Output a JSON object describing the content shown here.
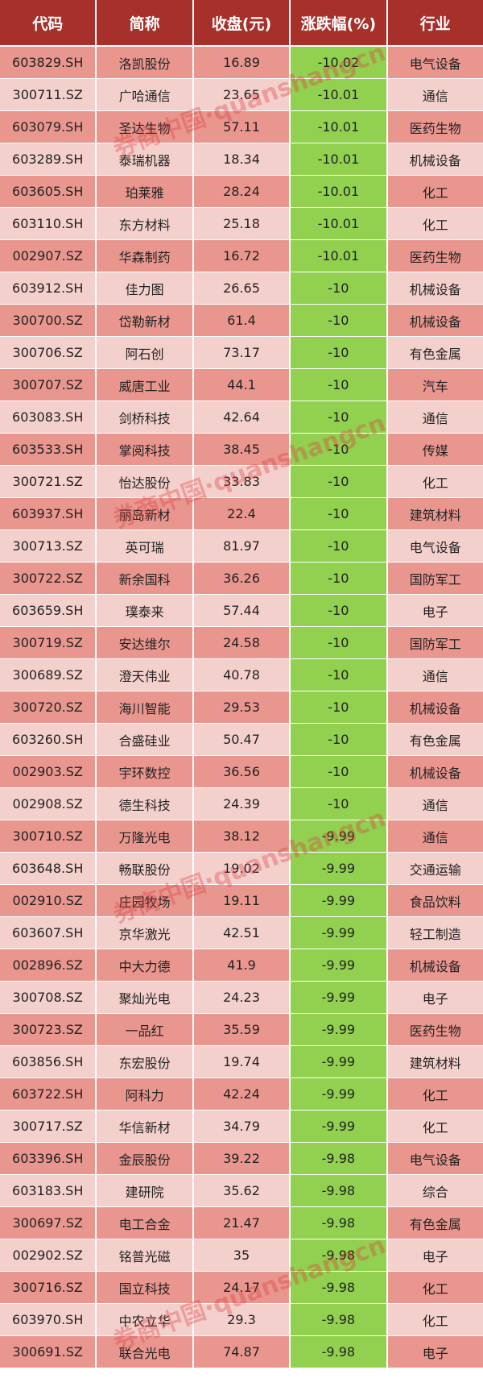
{
  "headers": [
    "代码",
    "简称",
    "收盘(元)",
    "涨跌幅(%)",
    "行业"
  ],
  "colors": {
    "header": "#a7302b",
    "row_dark": "#e9968f",
    "row_light": "#f4d0cc",
    "change_cell": "#92d050"
  },
  "watermark": "券商中国·quanshangcn",
  "rows": [
    [
      "603829.SH",
      "洛凯股份",
      "16.89",
      "-10.02",
      "电气设备"
    ],
    [
      "300711.SZ",
      "广哈通信",
      "23.65",
      "-10.01",
      "通信"
    ],
    [
      "603079.SH",
      "圣达生物",
      "57.11",
      "-10.01",
      "医药生物"
    ],
    [
      "603289.SH",
      "泰瑞机器",
      "18.34",
      "-10.01",
      "机械设备"
    ],
    [
      "603605.SH",
      "珀莱雅",
      "28.24",
      "-10.01",
      "化工"
    ],
    [
      "603110.SH",
      "东方材料",
      "25.18",
      "-10.01",
      "化工"
    ],
    [
      "002907.SZ",
      "华森制药",
      "16.72",
      "-10.01",
      "医药生物"
    ],
    [
      "603912.SH",
      "佳力图",
      "26.65",
      "-10",
      "机械设备"
    ],
    [
      "300700.SZ",
      "岱勒新材",
      "61.4",
      "-10",
      "机械设备"
    ],
    [
      "300706.SZ",
      "阿石创",
      "73.17",
      "-10",
      "有色金属"
    ],
    [
      "300707.SZ",
      "威唐工业",
      "44.1",
      "-10",
      "汽车"
    ],
    [
      "603083.SH",
      "剑桥科技",
      "42.64",
      "-10",
      "通信"
    ],
    [
      "603533.SH",
      "掌阅科技",
      "38.45",
      "-10",
      "传媒"
    ],
    [
      "300721.SZ",
      "怡达股份",
      "33.83",
      "-10",
      "化工"
    ],
    [
      "603937.SH",
      "丽岛新材",
      "22.4",
      "-10",
      "建筑材料"
    ],
    [
      "300713.SZ",
      "英可瑞",
      "81.97",
      "-10",
      "电气设备"
    ],
    [
      "300722.SZ",
      "新余国科",
      "36.26",
      "-10",
      "国防军工"
    ],
    [
      "603659.SH",
      "璞泰来",
      "57.44",
      "-10",
      "电子"
    ],
    [
      "300719.SZ",
      "安达维尔",
      "24.58",
      "-10",
      "国防军工"
    ],
    [
      "300689.SZ",
      "澄天伟业",
      "40.78",
      "-10",
      "通信"
    ],
    [
      "300720.SZ",
      "海川智能",
      "29.53",
      "-10",
      "机械设备"
    ],
    [
      "603260.SH",
      "合盛硅业",
      "50.47",
      "-10",
      "有色金属"
    ],
    [
      "002903.SZ",
      "宇环数控",
      "36.56",
      "-10",
      "机械设备"
    ],
    [
      "002908.SZ",
      "德生科技",
      "24.39",
      "-10",
      "通信"
    ],
    [
      "300710.SZ",
      "万隆光电",
      "38.12",
      "-9.99",
      "通信"
    ],
    [
      "603648.SH",
      "畅联股份",
      "19.02",
      "-9.99",
      "交通运输"
    ],
    [
      "002910.SZ",
      "庄园牧场",
      "19.11",
      "-9.99",
      "食品饮料"
    ],
    [
      "603607.SH",
      "京华激光",
      "42.51",
      "-9.99",
      "轻工制造"
    ],
    [
      "002896.SZ",
      "中大力德",
      "41.9",
      "-9.99",
      "机械设备"
    ],
    [
      "300708.SZ",
      "聚灿光电",
      "24.23",
      "-9.99",
      "电子"
    ],
    [
      "300723.SZ",
      "一品红",
      "35.59",
      "-9.99",
      "医药生物"
    ],
    [
      "603856.SH",
      "东宏股份",
      "19.74",
      "-9.99",
      "建筑材料"
    ],
    [
      "603722.SH",
      "阿科力",
      "42.24",
      "-9.99",
      "化工"
    ],
    [
      "300717.SZ",
      "华信新材",
      "34.79",
      "-9.99",
      "化工"
    ],
    [
      "603396.SH",
      "金辰股份",
      "39.22",
      "-9.98",
      "电气设备"
    ],
    [
      "603183.SH",
      "建研院",
      "35.62",
      "-9.98",
      "综合"
    ],
    [
      "300697.SZ",
      "电工合金",
      "21.47",
      "-9.98",
      "有色金属"
    ],
    [
      "002902.SZ",
      "铭普光磁",
      "35",
      "-9.98",
      "电子"
    ],
    [
      "300716.SZ",
      "国立科技",
      "24.17",
      "-9.98",
      "化工"
    ],
    [
      "603970.SH",
      "中农立华",
      "29.3",
      "-9.98",
      "化工"
    ],
    [
      "300691.SZ",
      "联合光电",
      "74.87",
      "-9.98",
      "电子"
    ]
  ]
}
